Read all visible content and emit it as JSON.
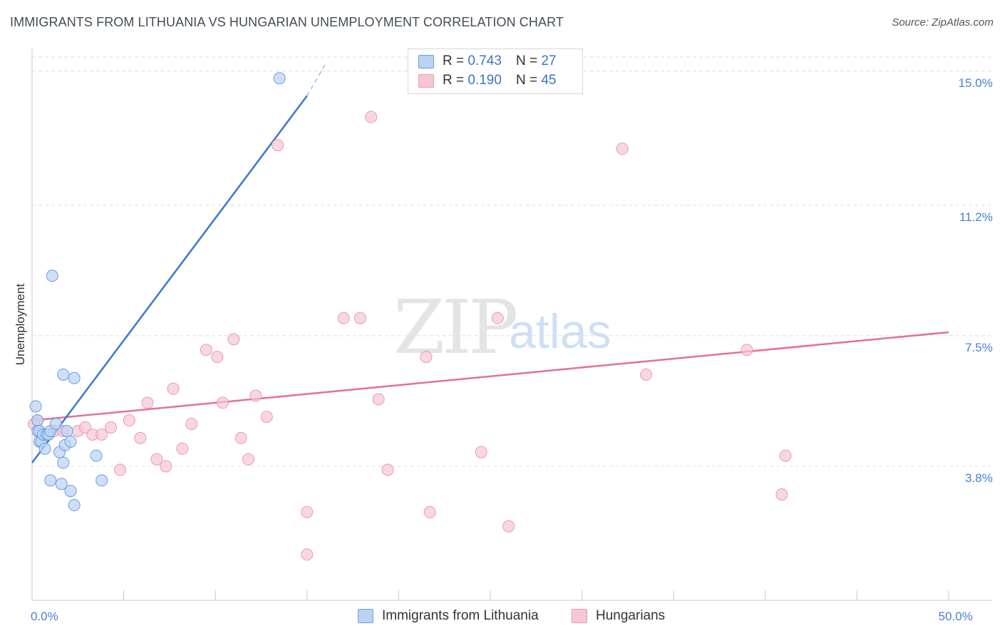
{
  "header": {
    "title": "IMMIGRANTS FROM LITHUANIA VS HUNGARIAN UNEMPLOYMENT CORRELATION CHART",
    "source": "Source: ZipAtlas.com"
  },
  "watermark": {
    "zip": "ZIP",
    "atlas": "atlas"
  },
  "legend": {
    "rows": [
      {
        "r_label": "R = ",
        "r_value": "0.743",
        "n_label": "N = ",
        "n_value": "27"
      },
      {
        "r_label": "R = ",
        "r_value": "0.190",
        "n_label": "N = ",
        "n_value": "45"
      }
    ]
  },
  "bottom_legend": {
    "series1": "Immigrants from Lithuania",
    "series2": "Hungarians"
  },
  "colors": {
    "blue_fill": "#b9d3f5",
    "blue_stroke": "#6f9bd8",
    "blue_line": "#3b78cf",
    "pink_fill": "#f7c6d4",
    "pink_stroke": "#e89ab2",
    "pink_line": "#e56f97",
    "tick_text": "#4a7fd1",
    "grid": "#dcdcdc"
  },
  "chart_data": {
    "type": "scatter",
    "title": "IMMIGRANTS FROM LITHUANIA VS HUNGARIAN UNEMPLOYMENT CORRELATION CHART",
    "xlabel": "",
    "ylabel": "Unemployment",
    "xlim": [
      0,
      50
    ],
    "ylim": [
      0,
      15.4
    ],
    "x_tick_labels": [
      {
        "value": 0,
        "label": "0.0%"
      },
      {
        "value": 50,
        "label": "50.0%"
      }
    ],
    "y_tick_labels": [
      {
        "value": 3.8,
        "label": "3.8%"
      },
      {
        "value": 7.5,
        "label": "7.5%"
      },
      {
        "value": 11.2,
        "label": "11.2%"
      },
      {
        "value": 15.0,
        "label": "15.0%"
      }
    ],
    "grid": "horizontal dashed",
    "series": [
      {
        "name": "Immigrants from Lithuania",
        "points": [
          [
            0.2,
            5.5
          ],
          [
            0.3,
            5.1
          ],
          [
            0.3,
            4.8
          ],
          [
            0.4,
            4.8
          ],
          [
            0.4,
            4.5
          ],
          [
            0.5,
            4.5
          ],
          [
            0.6,
            4.7
          ],
          [
            0.7,
            4.3
          ],
          [
            0.8,
            4.7
          ],
          [
            0.9,
            4.7
          ],
          [
            1.0,
            4.8
          ],
          [
            1.0,
            3.4
          ],
          [
            1.1,
            9.2
          ],
          [
            1.3,
            5.0
          ],
          [
            1.5,
            4.2
          ],
          [
            1.6,
            3.3
          ],
          [
            1.7,
            3.9
          ],
          [
            1.7,
            6.4
          ],
          [
            1.8,
            4.4
          ],
          [
            1.9,
            4.8
          ],
          [
            2.1,
            3.1
          ],
          [
            2.1,
            4.5
          ],
          [
            2.3,
            6.3
          ],
          [
            2.3,
            2.7
          ],
          [
            3.5,
            4.1
          ],
          [
            3.8,
            3.4
          ],
          [
            13.5,
            14.8
          ]
        ],
        "trend": {
          "x": [
            0,
            15
          ],
          "y": [
            3.9,
            14.3
          ],
          "dashed_to": [
            16,
            15.2
          ]
        }
      },
      {
        "name": "Hungarians",
        "points": [
          [
            0.3,
            5.1
          ],
          [
            1.2,
            4.8
          ],
          [
            1.7,
            4.8
          ],
          [
            2.5,
            4.8
          ],
          [
            2.9,
            4.9
          ],
          [
            3.3,
            4.7
          ],
          [
            3.8,
            4.7
          ],
          [
            4.3,
            4.9
          ],
          [
            4.8,
            3.7
          ],
          [
            5.3,
            5.1
          ],
          [
            5.9,
            4.6
          ],
          [
            6.3,
            5.6
          ],
          [
            6.8,
            4.0
          ],
          [
            7.3,
            3.8
          ],
          [
            7.7,
            6.0
          ],
          [
            8.2,
            4.3
          ],
          [
            8.7,
            5.0
          ],
          [
            9.5,
            7.1
          ],
          [
            10.1,
            6.9
          ],
          [
            10.4,
            5.6
          ],
          [
            11.0,
            7.4
          ],
          [
            11.4,
            4.6
          ],
          [
            11.8,
            4.0
          ],
          [
            12.2,
            5.8
          ],
          [
            12.8,
            5.2
          ],
          [
            13.4,
            12.9
          ],
          [
            15.0,
            2.5
          ],
          [
            15.0,
            1.3
          ],
          [
            17.0,
            8.0
          ],
          [
            17.9,
            8.0
          ],
          [
            18.5,
            13.7
          ],
          [
            18.9,
            5.7
          ],
          [
            19.4,
            3.7
          ],
          [
            21.5,
            6.9
          ],
          [
            21.7,
            2.5
          ],
          [
            22.4,
            15.0
          ],
          [
            24.5,
            4.2
          ],
          [
            25.4,
            8.0
          ],
          [
            26.0,
            2.1
          ],
          [
            32.2,
            12.8
          ],
          [
            33.5,
            6.4
          ],
          [
            39.0,
            7.1
          ],
          [
            40.9,
            3.0
          ],
          [
            41.1,
            4.1
          ],
          [
            0.1,
            5.0
          ]
        ],
        "trend": {
          "x": [
            0,
            50
          ],
          "y": [
            5.1,
            7.6
          ]
        }
      }
    ]
  }
}
